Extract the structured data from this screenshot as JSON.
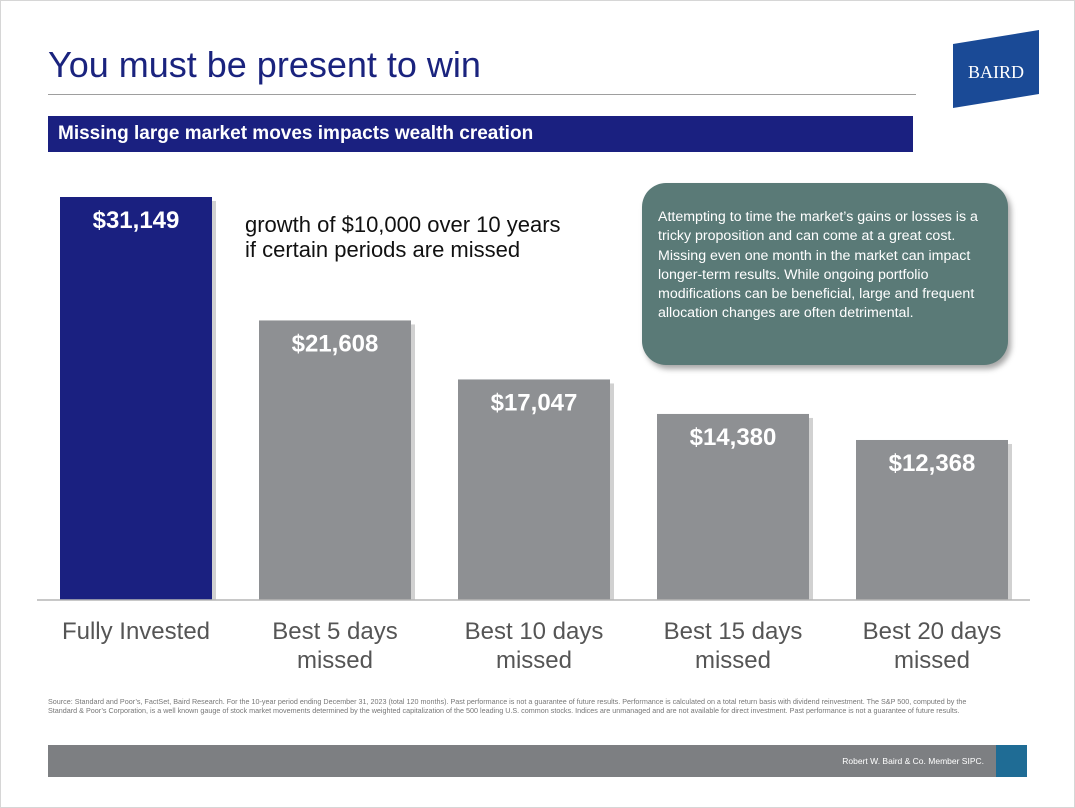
{
  "slide": {
    "title": "You must be present to win",
    "banner": "Missing large market moves impacts wealth creation",
    "subtitle_line1": "growth of $10,000 over 10 years",
    "subtitle_line2": "if certain periods are missed",
    "callout": "Attempting to time the market’s gains or losses is a tricky proposition and can come at a great cost. Missing even one month in the market can impact longer-term results. While ongoing portfolio modifications can be beneficial, large and frequent allocation changes are often detrimental.",
    "source": "Source: Standard and Poor’s, FactSet, Baird Research. For the 10-year period ending December 31, 2023 (total 120 months).  Past performance is not a guarantee of future results.  Performance is calculated on a total return basis with dividend reinvestment.  The S&P 500, computed by the Standard & Poor’s Corporation, is a well known gauge of stock market movements determined by the weighted capitalization of the 500 leading U.S. common stocks.  Indices are unmanaged and are not available for direct investment. Past performance is not a guarantee of future results.",
    "footer": "Robert W. Baird & Co. Member SIPC.",
    "logo_text": "BAIRD"
  },
  "colors": {
    "navy": "#1a2080",
    "bar_gray": "#8e9093",
    "callout": "#5a7a77",
    "footer_gray": "#7d7f82",
    "footer_accent": "#1f6c95"
  },
  "chart_data": {
    "type": "bar",
    "title": "",
    "categories": [
      "Fully Invested",
      "Best 5 days missed",
      "Best 10 days missed",
      "Best 15 days missed",
      "Best 20 days missed"
    ],
    "category_lines": [
      [
        "Fully Invested"
      ],
      [
        "Best 5 days",
        "missed"
      ],
      [
        "Best 10 days",
        "missed"
      ],
      [
        "Best 15 days",
        "missed"
      ],
      [
        "Best 20 days",
        "missed"
      ]
    ],
    "values": [
      31149,
      21608,
      17047,
      14380,
      12368
    ],
    "value_labels": [
      "$31,149",
      "$21,608",
      "$17,047",
      "$14,380",
      "$12,368"
    ],
    "bar_colors": [
      "#1a2080",
      "#8e9093",
      "#8e9093",
      "#8e9093",
      "#8e9093"
    ],
    "ylim": [
      0,
      31149
    ],
    "grid": false,
    "legend": "none"
  }
}
